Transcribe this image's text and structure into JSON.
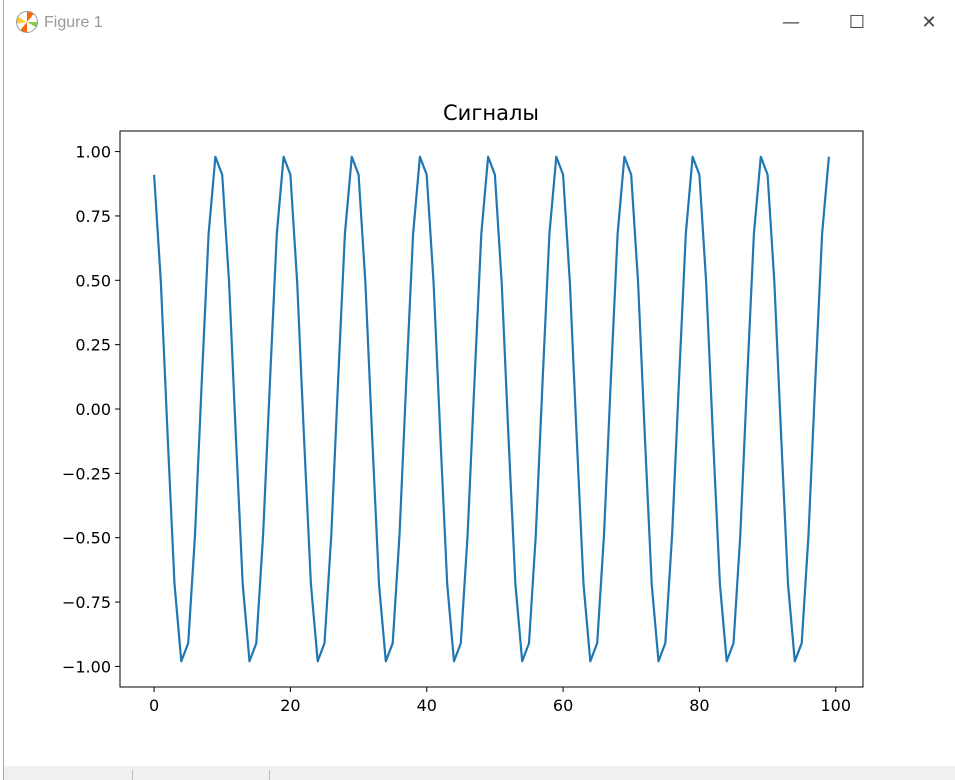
{
  "window": {
    "title": "Figure 1",
    "logo_icon": "matplotlib-logo-icon",
    "controls": {
      "minimize": "—",
      "maximize": "☐",
      "close": "✕"
    }
  },
  "chart_data": {
    "type": "line",
    "title": "Сигналы",
    "xlabel": "",
    "ylabel": "",
    "xlim": [
      -5,
      104
    ],
    "ylim": [
      -1.08,
      1.08
    ],
    "xticks": [
      "0",
      "20",
      "40",
      "60",
      "80",
      "100"
    ],
    "yticks": [
      "1.00",
      "0.75",
      "0.50",
      "0.25",
      "0.00",
      "−0.25",
      "−0.50",
      "−0.75",
      "−1.00"
    ],
    "grid": false,
    "color": "#1f77b4",
    "x_start": 0,
    "x_step": 1,
    "values": [
      0.91,
      0.49,
      -0.11,
      -0.68,
      -0.98,
      -0.91,
      -0.49,
      0.11,
      0.68,
      0.98,
      0.91,
      0.49,
      -0.11,
      -0.68,
      -0.98,
      -0.91,
      -0.49,
      0.11,
      0.68,
      0.98,
      0.91,
      0.49,
      -0.11,
      -0.68,
      -0.98,
      -0.91,
      -0.49,
      0.11,
      0.68,
      0.98,
      0.91,
      0.49,
      -0.11,
      -0.68,
      -0.98,
      -0.91,
      -0.49,
      0.11,
      0.68,
      0.98,
      0.91,
      0.49,
      -0.11,
      -0.68,
      -0.98,
      -0.91,
      -0.49,
      0.11,
      0.68,
      0.98,
      0.91,
      0.49,
      -0.11,
      -0.68,
      -0.98,
      -0.91,
      -0.49,
      0.11,
      0.68,
      0.98,
      0.91,
      0.49,
      -0.11,
      -0.68,
      -0.98,
      -0.91,
      -0.49,
      0.11,
      0.68,
      0.98,
      0.91,
      0.49,
      -0.11,
      -0.68,
      -0.98,
      -0.91,
      -0.49,
      0.11,
      0.68,
      0.98,
      0.91,
      0.49,
      -0.11,
      -0.68,
      -0.98,
      -0.91,
      -0.49,
      0.11,
      0.68,
      0.98,
      0.91,
      0.49,
      -0.11,
      -0.68,
      -0.98,
      -0.91,
      -0.49,
      0.11,
      0.68,
      0.98
    ]
  }
}
